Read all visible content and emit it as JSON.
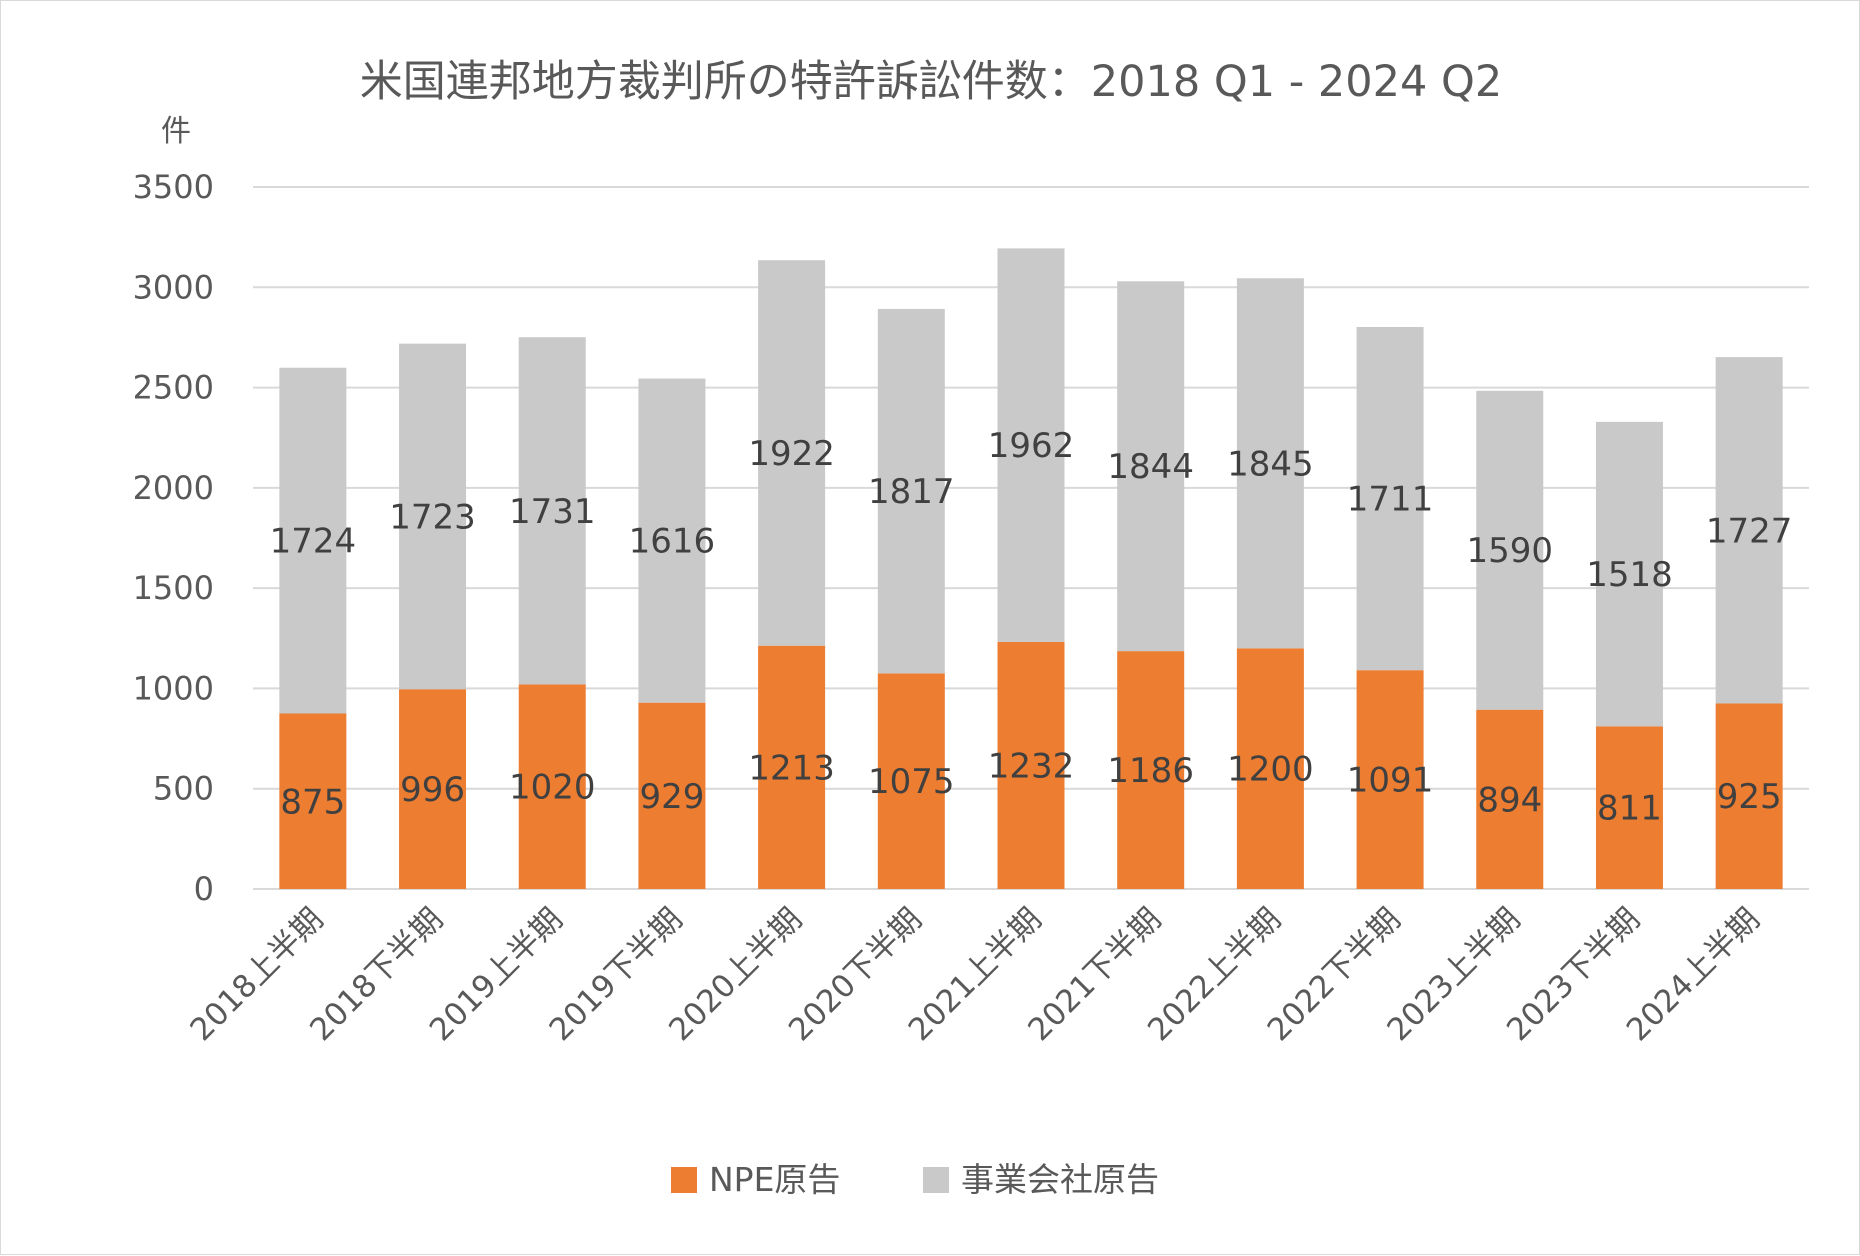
{
  "chart_data": {
    "type": "bar",
    "stacked": true,
    "title": "米国連邦地方裁判所の特許訴訟件数：2018 Q1 - 2024 Q2",
    "ylabel": "件",
    "xlabel": "",
    "ylim": [
      0,
      3500
    ],
    "yticks": [
      0,
      500,
      1000,
      1500,
      2000,
      2500,
      3000,
      3500
    ],
    "grid": true,
    "legend_position": "bottom",
    "categories": [
      "2018上半期",
      "2018下半期",
      "2019上半期",
      "2019下半期",
      "2020上半期",
      "2020下半期",
      "2021上半期",
      "2021下半期",
      "2022上半期",
      "2022下半期",
      "2023上半期",
      "2023下半期",
      "2024上半期"
    ],
    "series": [
      {
        "name": "NPE原告",
        "color": "#ed7d31",
        "values": [
          875,
          996,
          1020,
          929,
          1213,
          1075,
          1232,
          1186,
          1200,
          1091,
          894,
          811,
          925
        ]
      },
      {
        "name": "事業会社原告",
        "color": "#c9c9c9",
        "values": [
          1724,
          1723,
          1731,
          1616,
          1922,
          1817,
          1962,
          1844,
          1845,
          1711,
          1590,
          1518,
          1727
        ]
      }
    ]
  }
}
